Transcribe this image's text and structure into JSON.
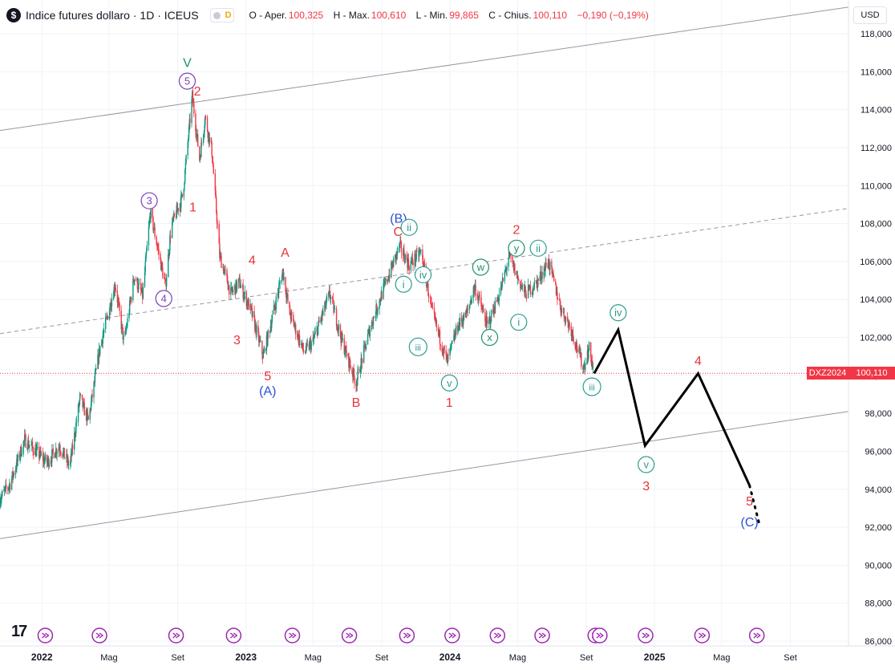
{
  "header": {
    "logo_glyph": "$",
    "title": "Indice futures dollaro · 1D · ICEUS",
    "data_type": "D",
    "open_label": "O - Aper.",
    "open": "100,325",
    "high_label": "H - Max.",
    "high": "100,610",
    "low_label": "L - Min.",
    "low": "99,865",
    "close_label": "C - Chius.",
    "close": "100,110",
    "change": "−0,190 (−0,19%)"
  },
  "currency": "USD",
  "price_label": {
    "ticker": "DXZ2024",
    "value": "100,110"
  },
  "watermark": "17",
  "colors": {
    "up": "#089981",
    "down": "#f23645",
    "wave_red": "#e8343a",
    "wave_blue": "#2b4fd8",
    "wave_purple": "#7b3fb8",
    "wave_green": "#1f8f6e",
    "wave_teal": "#2a9d8f"
  },
  "chart_data": {
    "type": "candlestick",
    "ylim": [
      86000,
      118000
    ],
    "xlim": [
      "2021-10-18",
      "2025-12-14"
    ],
    "y_ticks": [
      "118,000",
      "116,000",
      "114,000",
      "112,000",
      "110,000",
      "108,000",
      "106,000",
      "104,000",
      "102,000",
      "100,000",
      "98,000",
      "96,000",
      "94,000",
      "92,000",
      "90,000",
      "88,000",
      "86,000"
    ],
    "y_tick_values": [
      118000,
      116000,
      114000,
      112000,
      110000,
      108000,
      106000,
      104000,
      102000,
      100000,
      98000,
      96000,
      94000,
      92000,
      90000,
      88000,
      86000
    ],
    "x_ticks": [
      {
        "label": "2022",
        "date": "2022-01-01"
      },
      {
        "label": "Mag",
        "date": "2022-05-01"
      },
      {
        "label": "Set",
        "date": "2022-09-01"
      },
      {
        "label": "2023",
        "date": "2023-01-01"
      },
      {
        "label": "Mag",
        "date": "2023-05-01"
      },
      {
        "label": "Set",
        "date": "2023-09-01"
      },
      {
        "label": "2024",
        "date": "2024-01-01"
      },
      {
        "label": "Mag",
        "date": "2024-05-01"
      },
      {
        "label": "Set",
        "date": "2024-09-01"
      },
      {
        "label": "2025",
        "date": "2025-01-01"
      },
      {
        "label": "Mag",
        "date": "2025-05-01"
      },
      {
        "label": "Set",
        "date": "2025-09-01"
      }
    ],
    "last_price": 100110,
    "price_path": [
      [
        "2021-10-18",
        93500
      ],
      [
        "2021-11-05",
        94300
      ],
      [
        "2021-12-01",
        96600
      ],
      [
        "2022-01-10",
        95400
      ],
      [
        "2022-02-01",
        96300
      ],
      [
        "2022-02-20",
        95200
      ],
      [
        "2022-03-10",
        98800
      ],
      [
        "2022-03-25",
        97600
      ],
      [
        "2022-04-15",
        101500
      ],
      [
        "2022-05-12",
        104800
      ],
      [
        "2022-05-28",
        101700
      ],
      [
        "2022-06-15",
        105200
      ],
      [
        "2022-06-30",
        104200
      ],
      [
        "2022-07-14",
        108600
      ],
      [
        "2022-08-10",
        104700
      ],
      [
        "2022-08-20",
        107800
      ],
      [
        "2022-09-10",
        109500
      ],
      [
        "2022-09-27",
        114700
      ],
      [
        "2022-10-10",
        111400
      ],
      [
        "2022-10-20",
        113600
      ],
      [
        "2022-11-01",
        111800
      ],
      [
        "2022-11-15",
        106300
      ],
      [
        "2022-12-05",
        104300
      ],
      [
        "2022-12-20",
        104900
      ],
      [
        "2023-01-10",
        103400
      ],
      [
        "2023-02-01",
        101000
      ],
      [
        "2023-03-08",
        105500
      ],
      [
        "2023-03-20",
        103300
      ],
      [
        "2023-04-15",
        101200
      ],
      [
        "2023-05-01",
        101800
      ],
      [
        "2023-05-31",
        104300
      ],
      [
        "2023-06-20",
        102000
      ],
      [
        "2023-07-17",
        99600
      ],
      [
        "2023-08-10",
        102400
      ],
      [
        "2023-09-01",
        104300
      ],
      [
        "2023-10-03",
        106800
      ],
      [
        "2023-10-20",
        105800
      ],
      [
        "2023-11-10",
        106500
      ],
      [
        "2023-12-01",
        103200
      ],
      [
        "2023-12-27",
        100700
      ],
      [
        "2024-01-15",
        102600
      ],
      [
        "2024-02-01",
        103300
      ],
      [
        "2024-02-14",
        104700
      ],
      [
        "2024-03-08",
        102600
      ],
      [
        "2024-04-01",
        104500
      ],
      [
        "2024-04-16",
        106300
      ],
      [
        "2024-05-03",
        105000
      ],
      [
        "2024-05-15",
        104300
      ],
      [
        "2024-06-05",
        104900
      ],
      [
        "2024-06-25",
        106000
      ],
      [
        "2024-07-17",
        103600
      ],
      [
        "2024-08-05",
        102400
      ],
      [
        "2024-08-27",
        100400
      ],
      [
        "2024-09-06",
        101400
      ],
      [
        "2024-09-15",
        100110
      ]
    ],
    "projection": [
      [
        "2024-09-15",
        100100
      ],
      [
        "2024-10-28",
        102400
      ],
      [
        "2024-12-15",
        96300
      ],
      [
        "2025-03-20",
        100100
      ],
      [
        "2025-06-20",
        94200
      ]
    ],
    "projection_dotted": [
      [
        "2025-06-20",
        94200
      ],
      [
        "2025-07-08",
        92100
      ]
    ],
    "channel": [
      {
        "style": "solid",
        "p1": [
          "2021-10-18",
          112900
        ],
        "p2": [
          "2025-12-14",
          119400
        ]
      },
      {
        "style": "dashed",
        "p1": [
          "2021-10-18",
          102200
        ],
        "p2": [
          "2025-12-14",
          108800
        ]
      },
      {
        "style": "solid",
        "p1": [
          "2021-10-18",
          91400
        ],
        "p2": [
          "2025-12-14",
          98100
        ]
      }
    ],
    "wave_labels": [
      {
        "text": "V",
        "date": "2022-09-18",
        "price": 116500,
        "color": "green",
        "circle": false
      },
      {
        "text": "5",
        "date": "2022-09-18",
        "price": 115500,
        "color": "purple",
        "circle": true
      },
      {
        "text": "2",
        "date": "2022-10-06",
        "price": 115000,
        "color": "red",
        "circle": false
      },
      {
        "text": "3",
        "date": "2022-07-12",
        "price": 109200,
        "color": "purple",
        "circle": true
      },
      {
        "text": "1",
        "date": "2022-09-28",
        "price": 108900,
        "color": "red",
        "circle": false
      },
      {
        "text": "4",
        "date": "2022-08-07",
        "price": 104050,
        "color": "purple",
        "circle": true
      },
      {
        "text": "4",
        "date": "2023-01-12",
        "price": 106100,
        "color": "red",
        "circle": false
      },
      {
        "text": "A",
        "date": "2023-03-12",
        "price": 106500,
        "color": "red",
        "circle": false
      },
      {
        "text": "3",
        "date": "2022-12-16",
        "price": 101900,
        "color": "red",
        "circle": false
      },
      {
        "text": "5",
        "date": "2023-02-09",
        "price": 100000,
        "color": "red",
        "circle": false
      },
      {
        "text": "(A)",
        "date": "2023-02-09",
        "price": 99200,
        "color": "blue",
        "circle": false
      },
      {
        "text": "B",
        "date": "2023-07-17",
        "price": 98600,
        "color": "red",
        "circle": false
      },
      {
        "text": "(B)",
        "date": "2023-10-01",
        "price": 108300,
        "color": "blue",
        "circle": false
      },
      {
        "text": "C",
        "date": "2023-09-30",
        "price": 107600,
        "color": "red",
        "circle": false
      },
      {
        "text": "ii",
        "date": "2023-10-20",
        "price": 107800,
        "color": "teal",
        "circle": true
      },
      {
        "text": "i",
        "date": "2023-10-10",
        "price": 104800,
        "color": "teal",
        "circle": true
      },
      {
        "text": "iv",
        "date": "2023-11-14",
        "price": 105300,
        "color": "teal",
        "circle": true
      },
      {
        "text": "iii",
        "date": "2023-11-05",
        "price": 101500,
        "color": "teal",
        "circle": true
      },
      {
        "text": "v",
        "date": "2023-12-31",
        "price": 99600,
        "color": "teal",
        "circle": true
      },
      {
        "text": "1",
        "date": "2023-12-31",
        "price": 98600,
        "color": "red",
        "circle": false
      },
      {
        "text": "w",
        "date": "2024-02-25",
        "price": 105700,
        "color": "green",
        "circle": true
      },
      {
        "text": "x",
        "date": "2024-03-12",
        "price": 102000,
        "color": "green",
        "circle": true
      },
      {
        "text": "2",
        "date": "2024-04-29",
        "price": 107700,
        "color": "red",
        "circle": false
      },
      {
        "text": "y",
        "date": "2024-04-29",
        "price": 106700,
        "color": "green",
        "circle": true
      },
      {
        "text": "ii",
        "date": "2024-06-07",
        "price": 106700,
        "color": "teal",
        "circle": true
      },
      {
        "text": "i",
        "date": "2024-05-03",
        "price": 102800,
        "color": "teal",
        "circle": true
      },
      {
        "text": "iii",
        "date": "2024-09-11",
        "price": 99400,
        "color": "teal",
        "circle": true
      },
      {
        "text": "iv",
        "date": "2024-10-28",
        "price": 103300,
        "color": "teal",
        "circle": true
      },
      {
        "text": "v",
        "date": "2024-12-17",
        "price": 95300,
        "color": "teal",
        "circle": true
      },
      {
        "text": "3",
        "date": "2024-12-17",
        "price": 94200,
        "color": "red",
        "circle": false
      },
      {
        "text": "4",
        "date": "2025-03-20",
        "price": 100800,
        "color": "red",
        "circle": false
      },
      {
        "text": "5",
        "date": "2025-06-20",
        "price": 93400,
        "color": "red",
        "circle": false
      },
      {
        "text": "(C)",
        "date": "2025-06-20",
        "price": 92300,
        "color": "blue",
        "circle": false
      }
    ]
  }
}
